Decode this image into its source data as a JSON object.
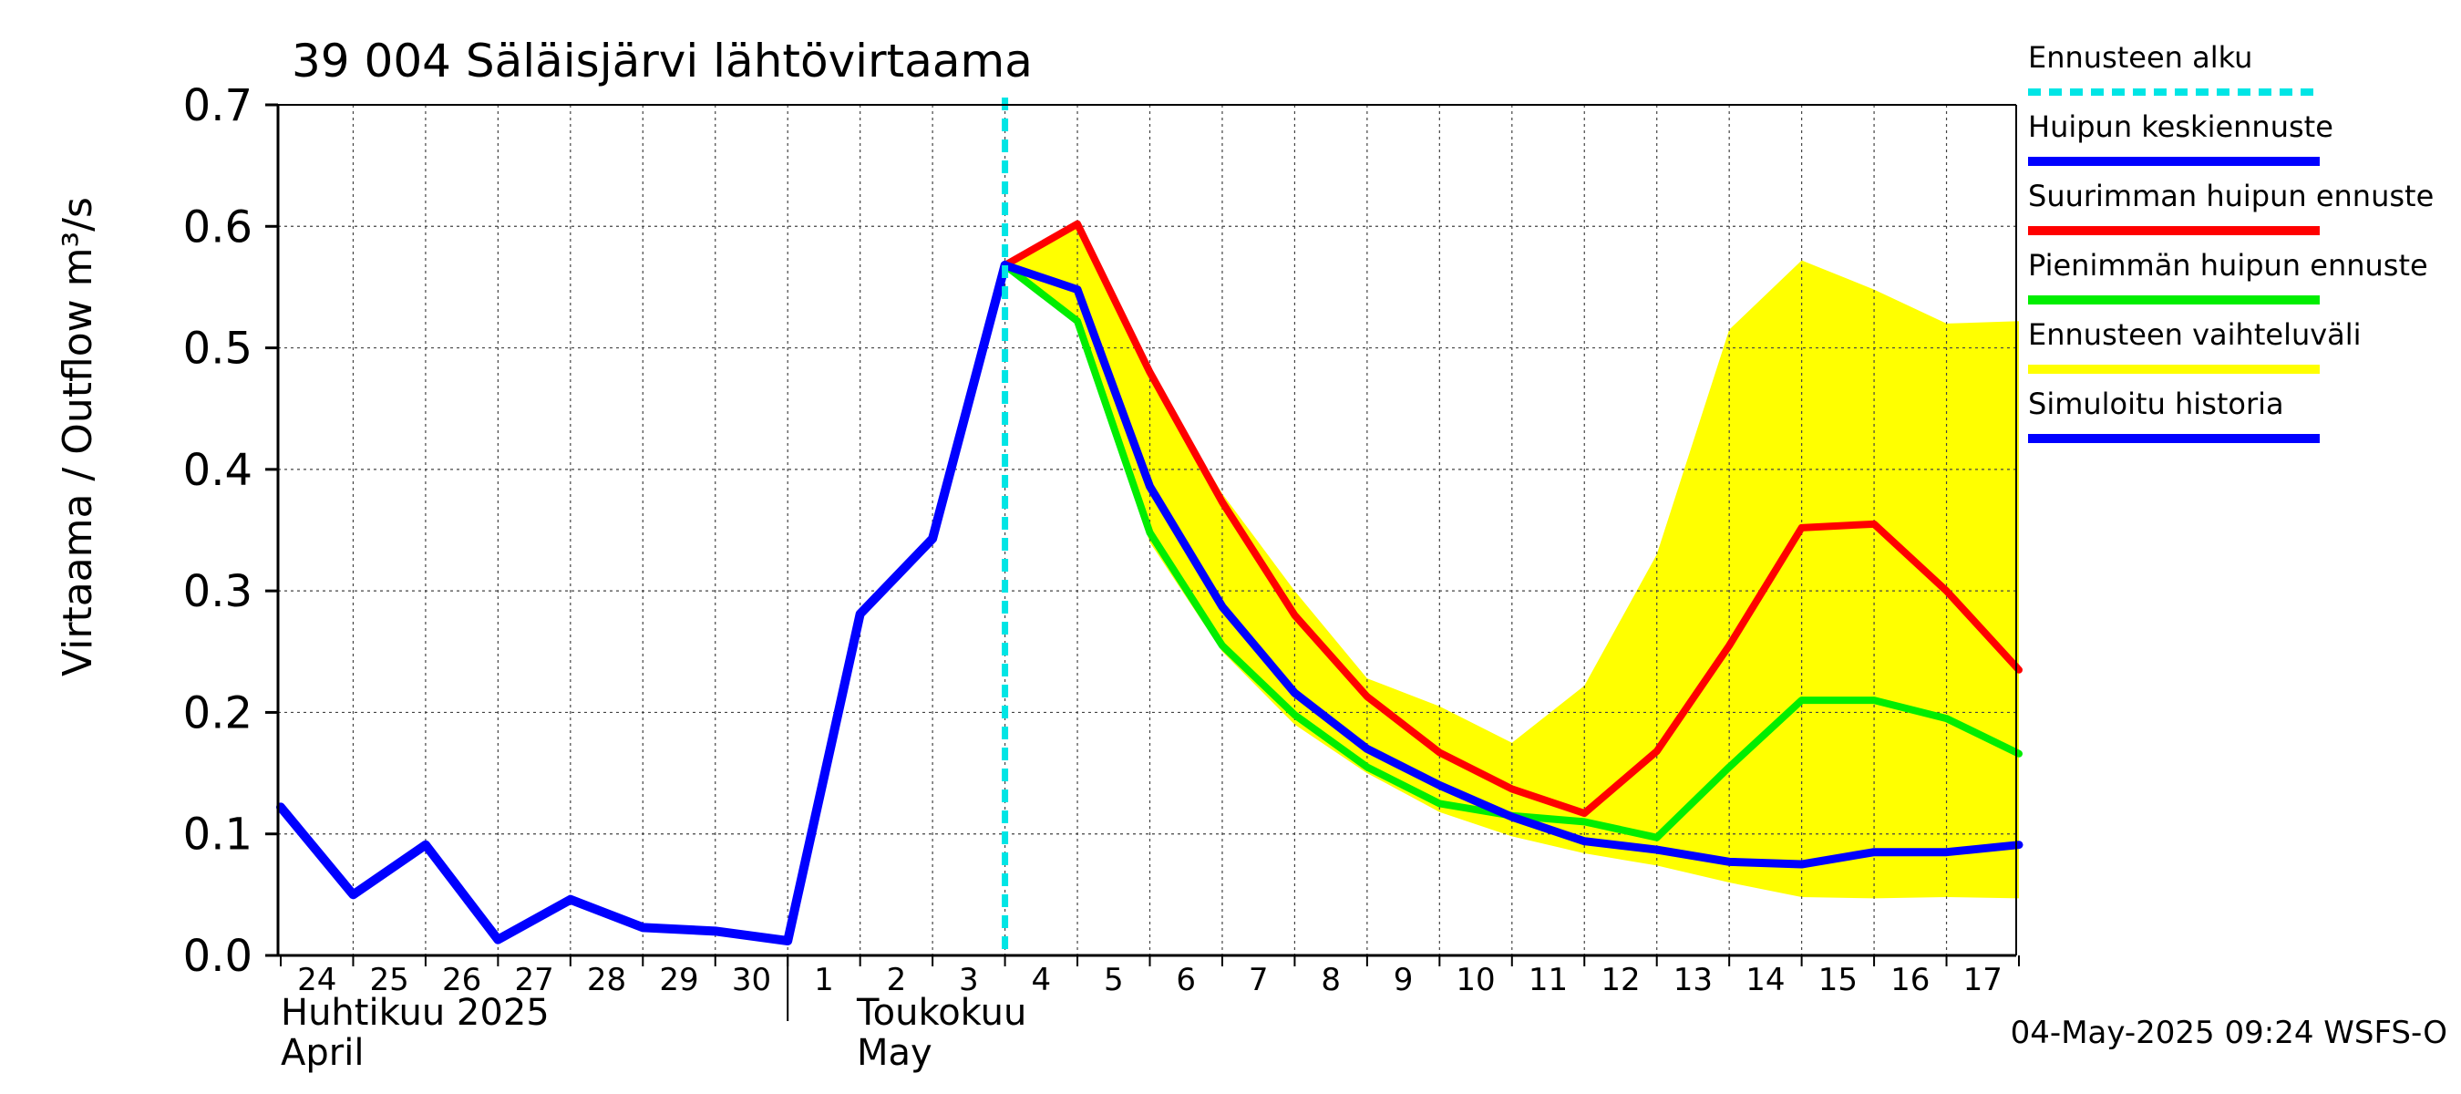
{
  "chart_data": {
    "type": "line",
    "title": "39 004 Säläisjärvi lähtövirtaama",
    "ylabel": "Virtaama / Outflow    m³/s",
    "ylim": [
      0.0,
      0.7
    ],
    "yticks": [
      "0.0",
      "0.1",
      "0.2",
      "0.3",
      "0.4",
      "0.5",
      "0.6",
      "0.7"
    ],
    "x_days": [
      "24",
      "25",
      "26",
      "27",
      "28",
      "29",
      "30",
      "1",
      "2",
      "3",
      "4",
      "5",
      "6",
      "7",
      "8",
      "9",
      "10",
      "11",
      "12",
      "13",
      "14",
      "15",
      "16",
      "17"
    ],
    "month_labels": {
      "april_fi": "Huhtikuu  2025",
      "april_en": "April",
      "may_fi": "Toukokuu",
      "may_en": "May"
    },
    "forecast_start_index": 10,
    "legend_position": "right",
    "legend": [
      {
        "name": "Ennusteen alku",
        "color": "#00e5e5",
        "style": "dashed"
      },
      {
        "name": "Huipun keskiennuste",
        "color": "#0000ff",
        "style": "solid"
      },
      {
        "name": "Suurimman huipun ennuste",
        "color": "#ff0000",
        "style": "solid"
      },
      {
        "name": "Pienimmän huipun ennuste",
        "color": "#00ee00",
        "style": "solid"
      },
      {
        "name": "Ennusteen vaihteluväli",
        "color": "#ffff00",
        "style": "band"
      },
      {
        "name": "Simuloitu historia",
        "color": "#0000ff",
        "style": "solid"
      }
    ],
    "history": {
      "x": [
        0,
        1,
        2,
        3,
        4,
        5,
        6,
        7,
        8,
        9,
        10
      ],
      "y": [
        0.122,
        0.05,
        0.091,
        0.013,
        0.046,
        0.023,
        0.02,
        0.012,
        0.281,
        0.343,
        0.568
      ]
    },
    "series": [
      {
        "name": "Huipun keskiennuste",
        "x": [
          10,
          11,
          12,
          13,
          14,
          15,
          16,
          17,
          18,
          19,
          20,
          21,
          22,
          23,
          24
        ],
        "y": [
          0.568,
          0.548,
          0.386,
          0.287,
          0.216,
          0.17,
          0.14,
          0.114,
          0.094,
          0.087,
          0.077,
          0.075,
          0.085,
          0.085,
          0.091
        ]
      },
      {
        "name": "Suurimman huipun ennuste",
        "x": [
          10,
          11,
          12,
          13,
          14,
          15,
          16,
          17,
          18,
          19,
          20,
          21,
          22,
          23,
          24
        ],
        "y": [
          0.568,
          0.602,
          0.48,
          0.373,
          0.28,
          0.213,
          0.167,
          0.137,
          0.117,
          0.168,
          0.255,
          0.352,
          0.355,
          0.3,
          0.235
        ]
      },
      {
        "name": "Pienimmän huipun ennuste",
        "x": [
          10,
          11,
          12,
          13,
          14,
          15,
          16,
          17,
          18,
          19,
          20,
          21,
          22,
          23,
          24
        ],
        "y": [
          0.568,
          0.522,
          0.348,
          0.255,
          0.198,
          0.155,
          0.125,
          0.115,
          0.11,
          0.097,
          0.155,
          0.21,
          0.21,
          0.195,
          0.166
        ]
      }
    ],
    "band": {
      "name": "Ennusteen vaihteluväli",
      "x": [
        10,
        11,
        12,
        13,
        14,
        15,
        16,
        17,
        18,
        19,
        20,
        21,
        22,
        23,
        24
      ],
      "upper": [
        0.568,
        0.602,
        0.48,
        0.38,
        0.3,
        0.228,
        0.205,
        0.175,
        0.222,
        0.33,
        0.515,
        0.572,
        0.548,
        0.52,
        0.522
      ],
      "lower": [
        0.568,
        0.52,
        0.34,
        0.25,
        0.19,
        0.15,
        0.118,
        0.098,
        0.084,
        0.074,
        0.06,
        0.048,
        0.047,
        0.048,
        0.047
      ]
    },
    "timestamp": "04-May-2025 09:24 WSFS-O"
  }
}
